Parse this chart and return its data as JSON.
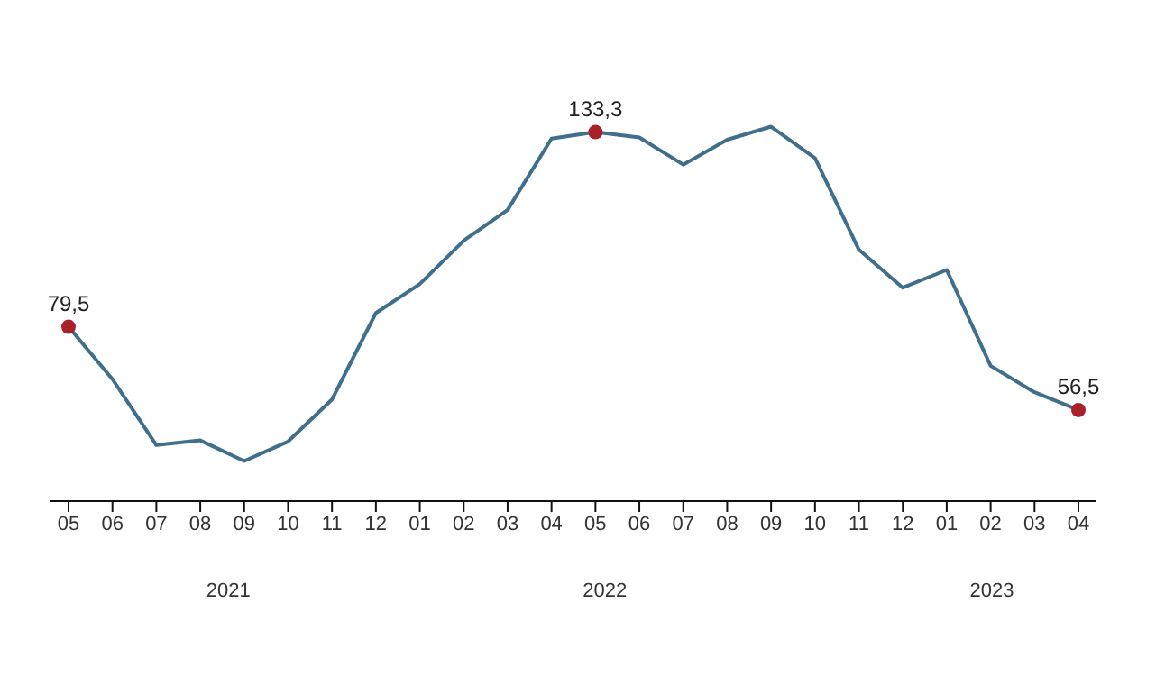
{
  "chart_data": {
    "type": "line",
    "categories": [
      "05",
      "06",
      "07",
      "08",
      "09",
      "10",
      "11",
      "12",
      "01",
      "02",
      "03",
      "04",
      "05",
      "06",
      "07",
      "08",
      "09",
      "10",
      "11",
      "12",
      "01",
      "02",
      "03",
      "04"
    ],
    "series": [
      {
        "color": "#3f6f8c",
        "values": [
          79.5,
          65.0,
          46.8,
          48.1,
          42.4,
          47.8,
          59.4,
          83.3,
          91.3,
          103.3,
          111.8,
          131.5,
          133.3,
          131.8,
          124.3,
          131.2,
          134.8,
          126.1,
          100.8,
          90.3,
          95.2,
          68.7,
          61.4,
          56.5
        ],
        "value_labels": [
          "79,5",
          null,
          null,
          null,
          null,
          null,
          null,
          null,
          null,
          null,
          null,
          null,
          "133,3",
          null,
          null,
          null,
          null,
          null,
          null,
          null,
          null,
          null,
          null,
          "56,5"
        ]
      }
    ],
    "annotations": [
      "2021",
      "2022",
      "2023"
    ],
    "grid": false,
    "legend": false
  }
}
